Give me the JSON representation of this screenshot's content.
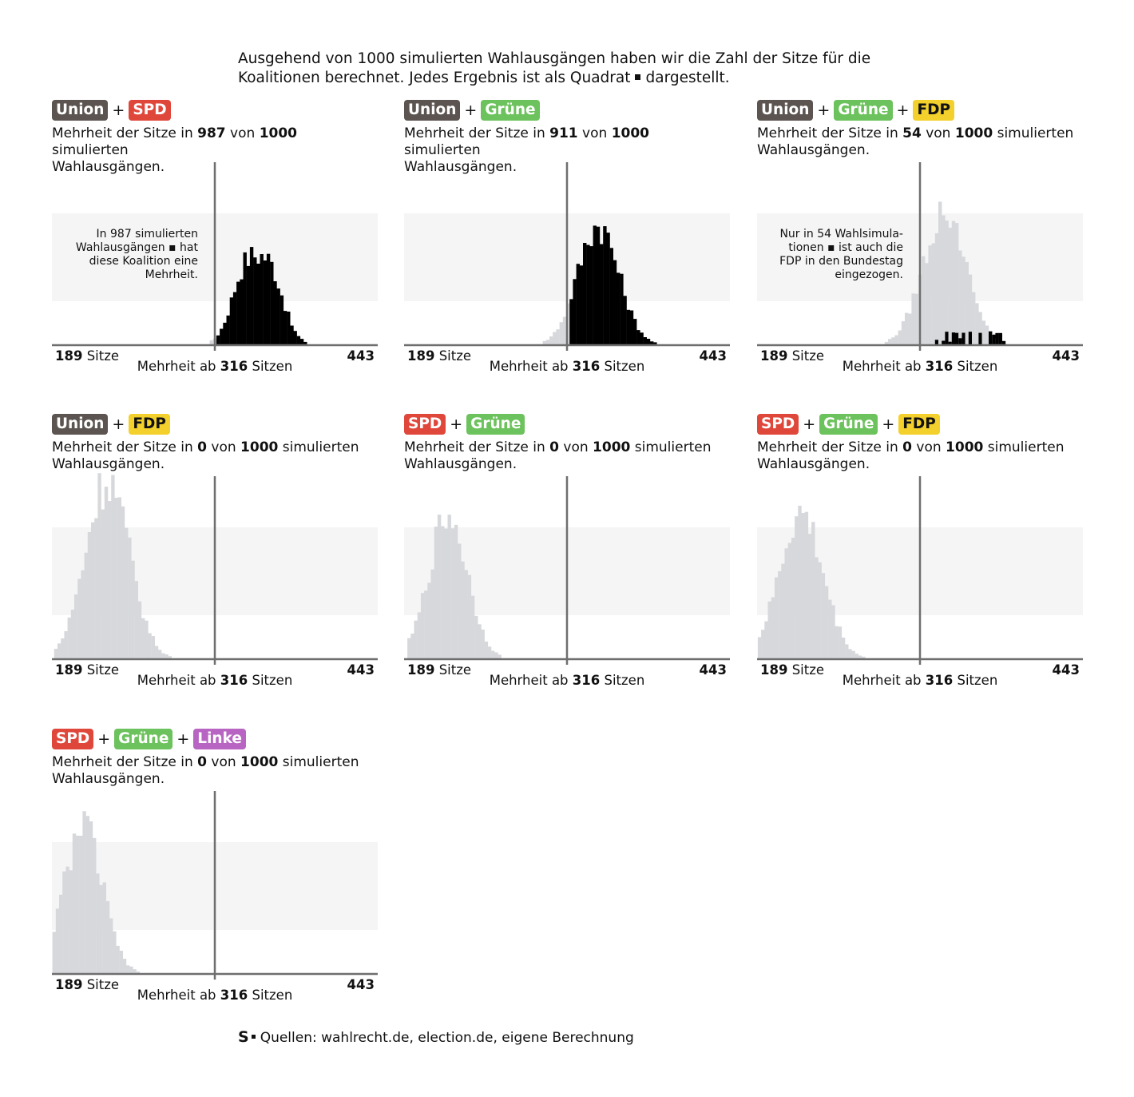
{
  "intro": {
    "line1": "Ausgehend von 1000 simulierten Wahlausgängen haben wir die Zahl der Sitze für die",
    "line2a": "Koalitionen berechnet. Jedes Ergebnis ist als Quadrat",
    "line2b": "dargestellt."
  },
  "source": {
    "logo": "S",
    "text": "Quellen: wahlrecht.de, election.de, eigene Berechnung"
  },
  "colors": {
    "Union": "#5b5450",
    "SPD": "#e0473b",
    "Grüne": "#6cc25c",
    "FDP": "#f3d02b",
    "Linke": "#b764c3"
  },
  "common": {
    "x_min_label": "189",
    "x_min_unit": "Sitze",
    "x_max_label": "443",
    "majority_prefix": "Mehrheit ab",
    "majority_value": "316",
    "majority_suffix": "Sitzen",
    "desc_prefix": "Mehrheit der Sitze in",
    "desc_mid": "von",
    "desc_total": "1000",
    "desc_suffix": "simulierten",
    "desc_line2": "Wahlausgängen.",
    "plus": "+"
  },
  "chart_data": [
    {
      "type": "bar",
      "coalition": [
        "Union",
        "SPD"
      ],
      "majority_count": "987",
      "annotation": [
        "In 987 simulierten",
        "Wahlausgängen ▪ hat",
        "diese Koalition eine",
        "Mehrheit."
      ],
      "xlim": [
        189,
        443
      ],
      "majority_threshold": 316,
      "center": 348,
      "spread": 18,
      "peak": 150,
      "bimodal": true,
      "highlight": "above_majority"
    },
    {
      "type": "bar",
      "coalition": [
        "Union",
        "Grüne"
      ],
      "majority_count": "911",
      "annotation": [],
      "xlim": [
        189,
        443
      ],
      "majority_threshold": 316,
      "center": 339,
      "spread": 16,
      "peak": 150,
      "bimodal": false,
      "highlight": "above_majority"
    },
    {
      "type": "bar",
      "coalition": [
        "Union",
        "Grüne",
        "FDP"
      ],
      "majority_count": "54",
      "annotation": [
        "Nur in 54 Wahlsimula-",
        "tionen ▪ ist auch die",
        "FDP in den Bundestag",
        "eingezogen."
      ],
      "xlim": [
        189,
        443
      ],
      "majority_threshold": 316,
      "center": 334,
      "spread": 17,
      "peak": 165,
      "bimodal": false,
      "highlight": "fdp_in"
    },
    {
      "type": "bar",
      "coalition": [
        "Union",
        "FDP"
      ],
      "majority_count": "0",
      "annotation": [],
      "xlim": [
        189,
        443
      ],
      "majority_threshold": 316,
      "center": 231,
      "spread": 17,
      "peak": 225,
      "bimodal": false,
      "highlight": "none"
    },
    {
      "type": "bar",
      "coalition": [
        "SPD",
        "Grüne"
      ],
      "majority_count": "0",
      "annotation": [],
      "xlim": [
        189,
        443
      ],
      "majority_threshold": 316,
      "center": 222,
      "spread": 15,
      "peak": 180,
      "bimodal": false,
      "highlight": "none"
    },
    {
      "type": "bar",
      "coalition": [
        "SPD",
        "Grüne",
        "FDP"
      ],
      "majority_count": "0",
      "annotation": [],
      "xlim": [
        189,
        443
      ],
      "majority_threshold": 316,
      "center": 222,
      "spread": 17,
      "peak": 180,
      "bimodal": false,
      "highlight": "none"
    },
    {
      "type": "bar",
      "coalition": [
        "SPD",
        "Grüne",
        "Linke"
      ],
      "majority_count": "0",
      "annotation": [],
      "xlim": [
        189,
        443
      ],
      "majority_threshold": 316,
      "center": 212,
      "spread": 15,
      "peak": 185,
      "bimodal": false,
      "highlight": "none"
    }
  ]
}
